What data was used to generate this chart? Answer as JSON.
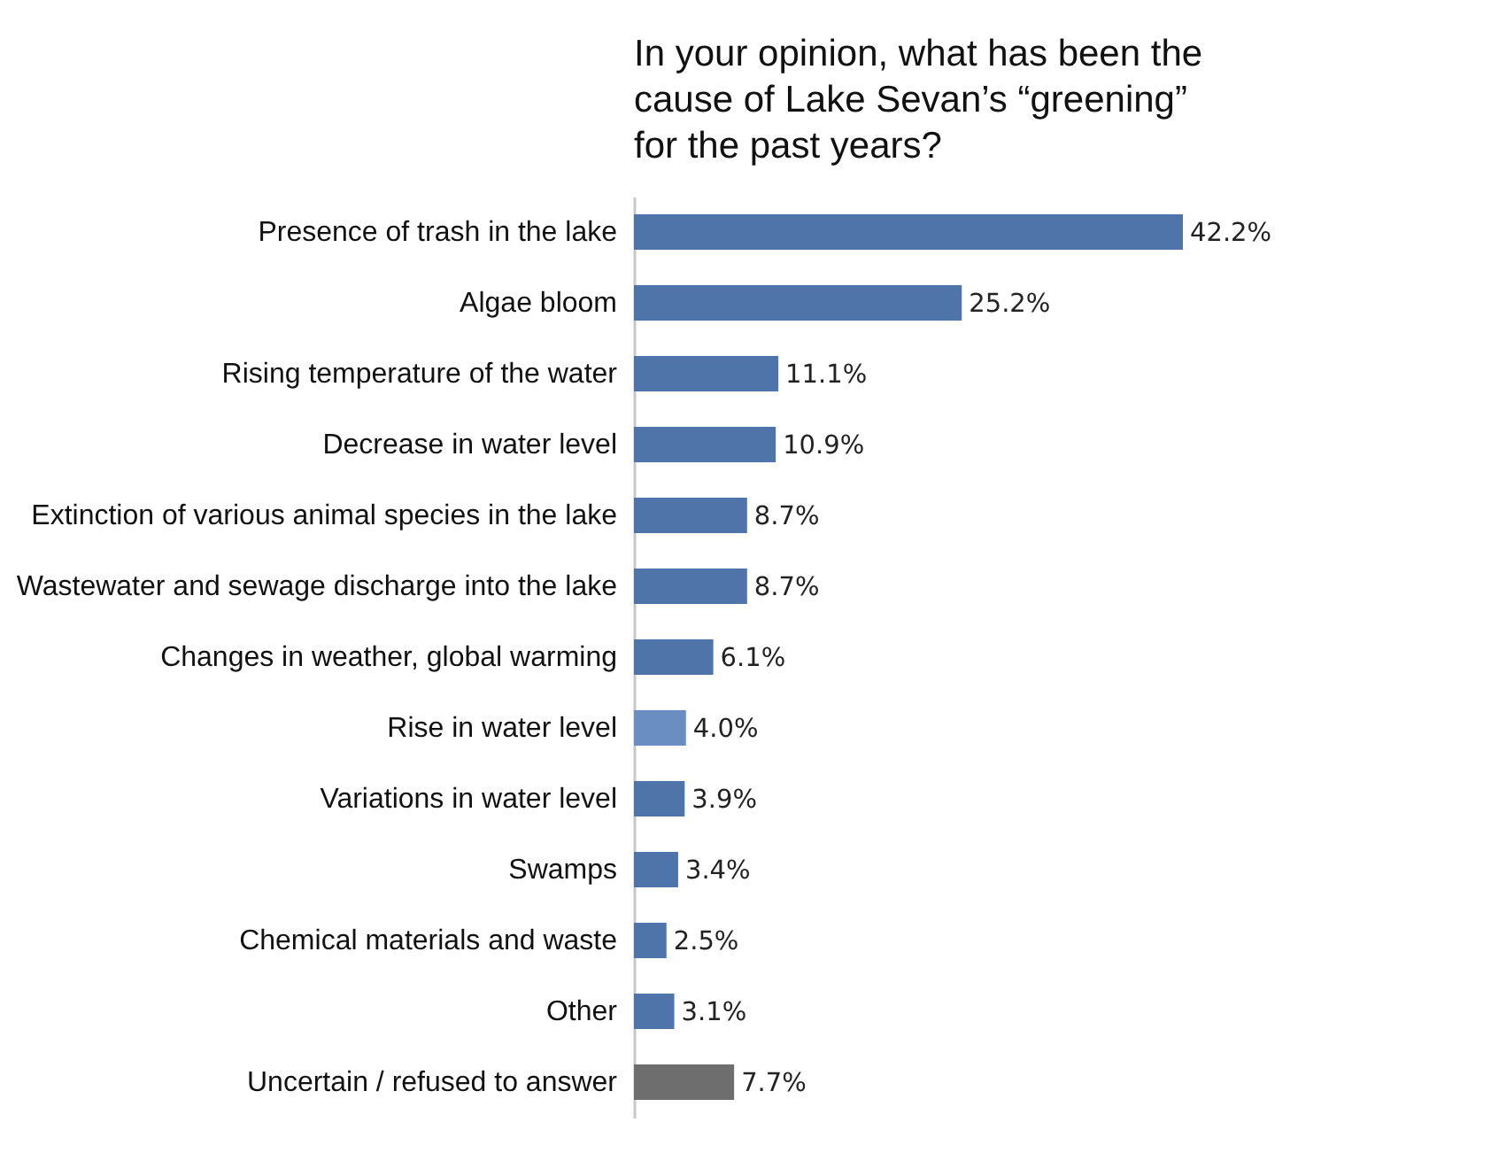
{
  "chart_data": {
    "type": "bar",
    "orientation": "horizontal",
    "title": "In your opinion, what has been the cause of Lake Sevan’s “greening” for the past years?",
    "categories": [
      "Presence of trash in the lake",
      "Algae bloom",
      "Rising temperature of the water",
      "Decrease in water level",
      "Extinction of various animal species in the lake",
      "Wastewater and sewage discharge into the lake",
      "Changes in weather, global warming",
      "Rise in water level",
      "Variations in water level",
      "Swamps",
      "Chemical materials and waste",
      "Other",
      "Uncertain / refused to answer"
    ],
    "values": [
      42.2,
      25.2,
      11.1,
      10.9,
      8.7,
      8.7,
      6.1,
      4.0,
      3.9,
      3.4,
      2.5,
      3.1,
      7.7
    ],
    "value_labels": [
      "42.2%",
      "25.2%",
      "11.1%",
      "10.9%",
      "8.7%",
      "8.7%",
      "6.1%",
      "4.0%",
      "3.9%",
      "3.4%",
      "2.5%",
      "3.1%",
      "7.7%"
    ],
    "colors": [
      "#4f74aa",
      "#4f74aa",
      "#4f74aa",
      "#4f74aa",
      "#4f74aa",
      "#4f74aa",
      "#4f74aa",
      "#6a8ec2",
      "#4f74aa",
      "#4f74aa",
      "#4f74aa",
      "#4f74aa",
      "#6e6e6e"
    ],
    "tick_labels": "y",
    "legend": false
  }
}
